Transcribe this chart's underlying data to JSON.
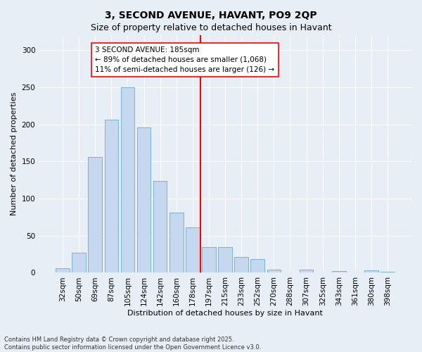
{
  "title": "3, SECOND AVENUE, HAVANT, PO9 2QP",
  "subtitle": "Size of property relative to detached houses in Havant",
  "xlabel": "Distribution of detached houses by size in Havant",
  "ylabel": "Number of detached properties",
  "categories": [
    "32sqm",
    "50sqm",
    "69sqm",
    "87sqm",
    "105sqm",
    "124sqm",
    "142sqm",
    "160sqm",
    "178sqm",
    "197sqm",
    "215sqm",
    "233sqm",
    "252sqm",
    "270sqm",
    "288sqm",
    "307sqm",
    "325sqm",
    "343sqm",
    "361sqm",
    "380sqm",
    "398sqm"
  ],
  "values": [
    6,
    27,
    156,
    206,
    250,
    196,
    124,
    81,
    61,
    35,
    35,
    21,
    18,
    4,
    0,
    4,
    0,
    2,
    0,
    3,
    1
  ],
  "bar_color": "#c5d8f0",
  "bar_edge_color": "#6aaad4",
  "vline_color": "red",
  "annotation_text": "3 SECOND AVENUE: 185sqm\n← 89% of detached houses are smaller (1,068)\n11% of semi-detached houses are larger (126) →",
  "annotation_box_color": "white",
  "annotation_box_edge_color": "red",
  "ylim": [
    0,
    320
  ],
  "yticks": [
    0,
    50,
    100,
    150,
    200,
    250,
    300
  ],
  "footer": "Contains HM Land Registry data © Crown copyright and database right 2025.\nContains public sector information licensed under the Open Government Licence v3.0.",
  "bg_color": "#e8eef6",
  "plot_bg_color": "#e8eef6",
  "grid_color": "white",
  "title_fontsize": 10,
  "subtitle_fontsize": 9,
  "axis_label_fontsize": 8,
  "tick_fontsize": 7.5,
  "annotation_fontsize": 7.5,
  "footer_fontsize": 6
}
